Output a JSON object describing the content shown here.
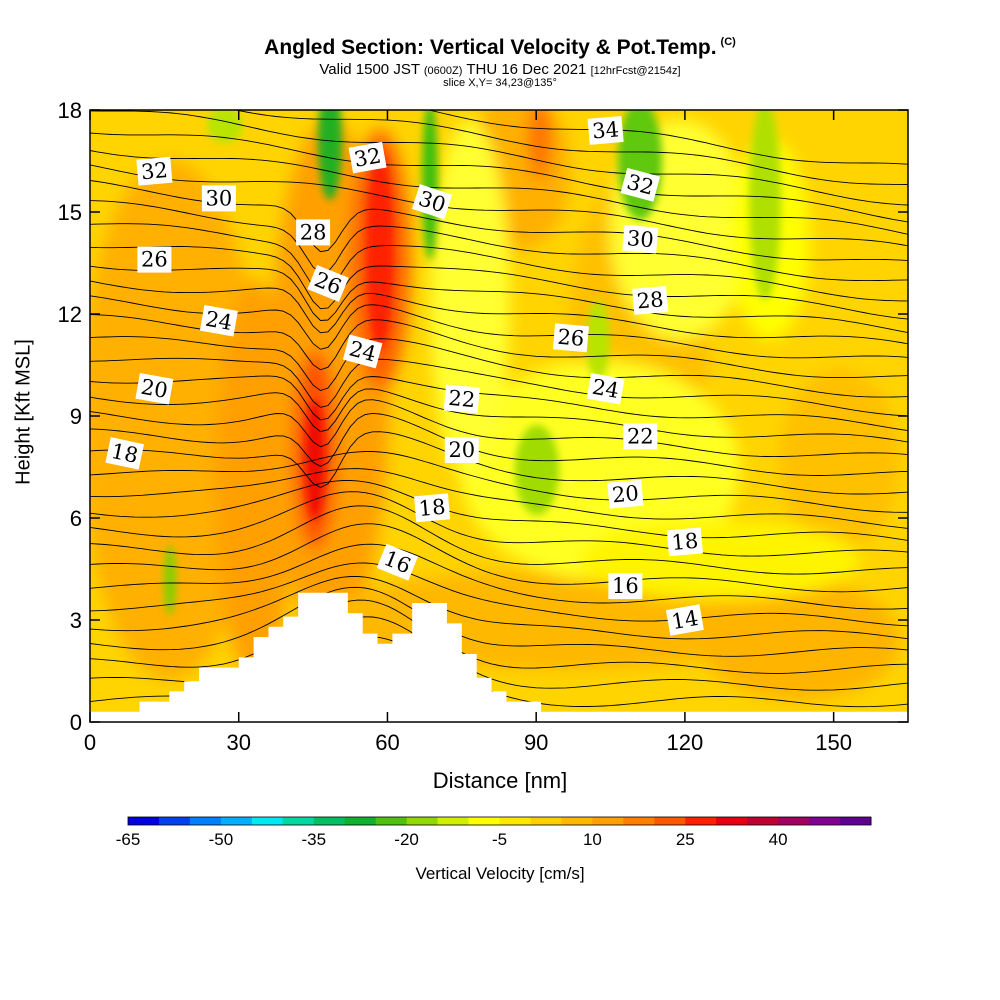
{
  "chart_data": {
    "type": "heatmap",
    "title": "Angled Section: Vertical Velocity & Pot.Temp.",
    "title_mark": "(C)",
    "subtitle_valid": "Valid 1500 JST",
    "subtitle_z": "(0600Z)",
    "subtitle_date": "THU 16 Dec 2021",
    "subtitle_fcst": "[12hrFcst@2154z]",
    "slice": "slice X,Y= 34,23@135°",
    "xlabel": "Distance [nm]",
    "ylabel": "Height [Kft MSL]",
    "xlim": [
      0,
      165
    ],
    "ylim": [
      0,
      18
    ],
    "x_ticks": [
      0,
      30,
      60,
      90,
      120,
      150
    ],
    "y_ticks": [
      0,
      3,
      6,
      9,
      12,
      15,
      18
    ],
    "colorbar": {
      "label": "Vertical Velocity [cm/s]",
      "tick_labels": [
        "-65",
        "-50",
        "-35",
        "-20",
        "-5",
        "10",
        "25",
        "40"
      ],
      "tick_values": [
        -65,
        -50,
        -35,
        -20,
        -5,
        10,
        25,
        40
      ],
      "colors": [
        "#0000e0",
        "#0040f0",
        "#0080ff",
        "#00b0ff",
        "#00e8f0",
        "#00d8a0",
        "#00c060",
        "#10b030",
        "#50c010",
        "#90d800",
        "#d0f000",
        "#ffff00",
        "#ffe800",
        "#ffd000",
        "#ffb800",
        "#ffa000",
        "#ff8000",
        "#ff5800",
        "#ff2000",
        "#e80010",
        "#c00030",
        "#a00060",
        "#800090",
        "#600090"
      ]
    },
    "terrain": [
      [
        0,
        0.3
      ],
      [
        10,
        0.3
      ],
      [
        10,
        0.6
      ],
      [
        16,
        0.6
      ],
      [
        16,
        0.9
      ],
      [
        19,
        0.9
      ],
      [
        19,
        1.2
      ],
      [
        22,
        1.2
      ],
      [
        22,
        1.6
      ],
      [
        30,
        1.6
      ],
      [
        30,
        1.9
      ],
      [
        33,
        1.9
      ],
      [
        33,
        2.5
      ],
      [
        36,
        2.5
      ],
      [
        36,
        2.8
      ],
      [
        39,
        2.8
      ],
      [
        39,
        3.1
      ],
      [
        42,
        3.1
      ],
      [
        42,
        3.8
      ],
      [
        52,
        3.8
      ],
      [
        52,
        3.2
      ],
      [
        55,
        3.2
      ],
      [
        55,
        2.6
      ],
      [
        58,
        2.6
      ],
      [
        58,
        2.3
      ],
      [
        61,
        2.3
      ],
      [
        61,
        2.6
      ],
      [
        65,
        2.6
      ],
      [
        65,
        3.5
      ],
      [
        72,
        3.5
      ],
      [
        72,
        2.9
      ],
      [
        75,
        2.9
      ],
      [
        75,
        2.0
      ],
      [
        78,
        2.0
      ],
      [
        78,
        1.3
      ],
      [
        81,
        1.3
      ],
      [
        81,
        0.9
      ],
      [
        84,
        0.9
      ],
      [
        84,
        0.6
      ],
      [
        91,
        0.6
      ],
      [
        91,
        0.3
      ],
      [
        165,
        0.3
      ]
    ],
    "contour_levels": [
      14,
      16,
      18,
      20,
      22,
      24,
      26,
      28,
      30,
      32,
      34
    ],
    "contour_labels": [
      {
        "text": "32",
        "x": 13,
        "y": 16.2,
        "rot": -5
      },
      {
        "text": "30",
        "x": 26,
        "y": 15.4,
        "rot": 0
      },
      {
        "text": "28",
        "x": 45,
        "y": 14.4,
        "rot": 0
      },
      {
        "text": "26",
        "x": 13,
        "y": 13.6,
        "rot": 0
      },
      {
        "text": "26",
        "x": 48,
        "y": 12.9,
        "rot": 22
      },
      {
        "text": "24",
        "x": 26,
        "y": 11.8,
        "rot": 10
      },
      {
        "text": "24",
        "x": 55,
        "y": 10.9,
        "rot": 15
      },
      {
        "text": "20",
        "x": 13,
        "y": 9.8,
        "rot": 10
      },
      {
        "text": "18",
        "x": 7,
        "y": 7.9,
        "rot": 12
      },
      {
        "text": "32",
        "x": 56,
        "y": 16.6,
        "rot": -10
      },
      {
        "text": "30",
        "x": 69,
        "y": 15.3,
        "rot": 18
      },
      {
        "text": "22",
        "x": 75,
        "y": 9.5,
        "rot": 5
      },
      {
        "text": "20",
        "x": 75,
        "y": 8.0,
        "rot": 0
      },
      {
        "text": "18",
        "x": 69,
        "y": 6.3,
        "rot": -5
      },
      {
        "text": "16",
        "x": 62,
        "y": 4.7,
        "rot": 22
      },
      {
        "text": "34",
        "x": 104,
        "y": 17.4,
        "rot": -5
      },
      {
        "text": "32",
        "x": 111,
        "y": 15.8,
        "rot": 15
      },
      {
        "text": "30",
        "x": 111,
        "y": 14.2,
        "rot": 5
      },
      {
        "text": "28",
        "x": 113,
        "y": 12.4,
        "rot": -5
      },
      {
        "text": "26",
        "x": 97,
        "y": 11.3,
        "rot": 5
      },
      {
        "text": "24",
        "x": 104,
        "y": 9.8,
        "rot": 10
      },
      {
        "text": "22",
        "x": 111,
        "y": 8.4,
        "rot": 0
      },
      {
        "text": "20",
        "x": 108,
        "y": 6.7,
        "rot": -5
      },
      {
        "text": "18",
        "x": 120,
        "y": 5.3,
        "rot": -5
      },
      {
        "text": "16",
        "x": 108,
        "y": 4.0,
        "rot": 0
      },
      {
        "text": "14",
        "x": 120,
        "y": 3.0,
        "rot": -10
      }
    ]
  }
}
